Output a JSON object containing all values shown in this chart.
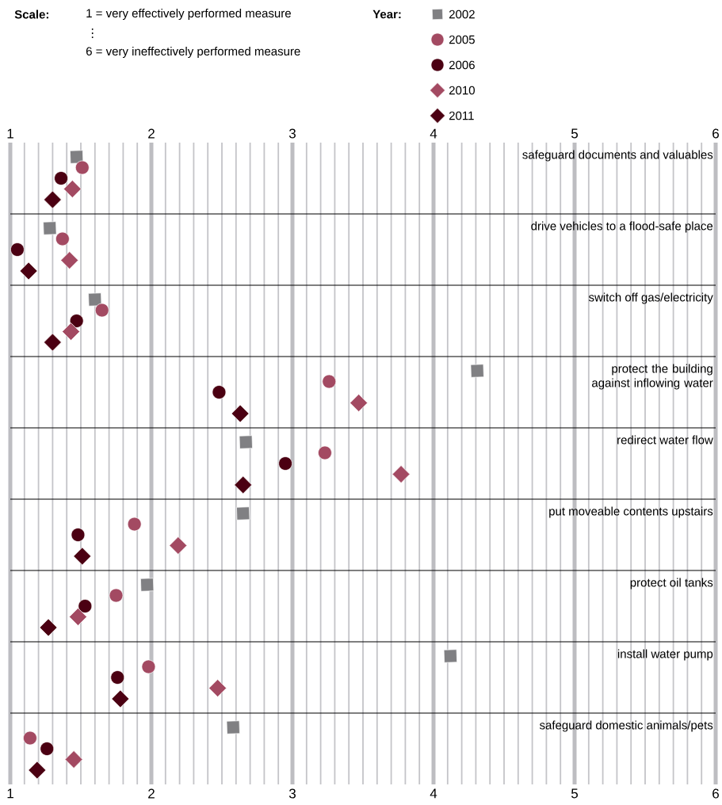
{
  "chart_data": {
    "type": "scatter",
    "orientation": "horizontal",
    "annotations": [
      "Scale:",
      "1 = very effectively performed measure",
      "⋮",
      "6 = very ineffectively performed measure"
    ],
    "legend_title": "Year:",
    "legend": "top",
    "grid": "x",
    "categories": [
      "safeguard documents and valuables",
      "drive vehicles to a flood-safe place",
      "switch off gas/electricity",
      "protect the building against inflowing water",
      "redirect water flow",
      "put moveable contents upstairs",
      "protect oil tanks",
      "install water pump",
      "safeguard domestic animals/pets"
    ],
    "series": [
      {
        "name": "2002",
        "color": "#808083",
        "marker": "square",
        "values": [
          1.47,
          1.28,
          1.6,
          4.31,
          2.67,
          2.65,
          1.97,
          4.12,
          2.58
        ]
      },
      {
        "name": "2005",
        "color": "#a34a62",
        "marker": "circle",
        "values": [
          1.51,
          1.37,
          1.65,
          3.26,
          3.23,
          1.88,
          1.75,
          1.98,
          1.14
        ]
      },
      {
        "name": "2006",
        "color": "#4b0012",
        "marker": "circle",
        "values": [
          1.36,
          1.05,
          1.47,
          2.48,
          2.95,
          1.48,
          1.53,
          1.76,
          1.26
        ]
      },
      {
        "name": "2010",
        "color": "#a34a62",
        "marker": "diamond",
        "values": [
          1.44,
          1.42,
          1.43,
          3.47,
          3.77,
          2.19,
          1.48,
          2.47,
          1.45
        ]
      },
      {
        "name": "2011",
        "color": "#4b0012",
        "marker": "diamond",
        "values": [
          1.3,
          1.13,
          1.3,
          2.63,
          2.65,
          1.51,
          1.27,
          1.78,
          1.19
        ]
      }
    ],
    "xlim": [
      1,
      6
    ],
    "xticks": [
      1,
      {
        "value": 1.1,
        "label": null
      },
      {
        "value": 1.2,
        "label": null
      },
      {
        "value": 1.3,
        "label": null
      },
      {
        "value": 1.4,
        "label": null
      },
      {
        "value": 1.5,
        "label": null
      },
      {
        "value": 1.6,
        "label": null
      },
      {
        "value": 1.7,
        "label": null
      },
      {
        "value": 1.8,
        "label": null
      },
      {
        "value": 1.9,
        "label": null
      },
      2,
      {
        "value": 2.1,
        "label": null
      },
      {
        "value": 2.2,
        "label": null
      },
      {
        "value": 2.3,
        "label": null
      },
      {
        "value": 2.4,
        "label": null
      },
      {
        "value": 2.5,
        "label": null
      },
      {
        "value": 2.6,
        "label": null
      },
      {
        "value": 2.7,
        "label": null
      },
      {
        "value": 2.8,
        "label": null
      },
      {
        "value": 2.9,
        "label": null
      },
      3,
      {
        "value": 3.1,
        "label": null
      },
      {
        "value": 3.2,
        "label": null
      },
      {
        "value": 3.3,
        "label": null
      },
      {
        "value": 3.4,
        "label": null
      },
      {
        "value": 3.5,
        "label": null
      },
      {
        "value": 3.6,
        "label": null
      },
      {
        "value": 3.7,
        "label": null
      },
      {
        "value": 3.8,
        "label": null
      },
      {
        "value": 3.9,
        "label": null
      },
      4,
      {
        "value": 4.1,
        "label": null
      },
      {
        "value": 4.2,
        "label": null
      },
      {
        "value": 4.3,
        "label": null
      },
      {
        "value": 4.4,
        "label": null
      },
      {
        "value": 4.5,
        "label": null
      },
      {
        "value": 4.6,
        "label": null
      },
      {
        "value": 4.7,
        "label": null
      },
      {
        "value": 4.8,
        "label": null
      },
      {
        "value": 4.9,
        "label": null
      },
      5,
      {
        "value": 5.1,
        "label": null
      },
      {
        "value": 5.2,
        "label": null
      },
      {
        "value": 5.3,
        "label": null
      },
      {
        "value": 5.4,
        "label": null
      },
      {
        "value": 5.5,
        "label": null
      },
      {
        "value": 5.6,
        "label": null
      },
      {
        "value": 5.7,
        "label": null
      },
      {
        "value": 5.8,
        "label": null
      },
      {
        "value": 5.9,
        "label": null
      },
      6
    ],
    "x2lim": [
      1,
      6
    ],
    "x2ticks": [
      1,
      2,
      3,
      4,
      5,
      6
    ]
  }
}
